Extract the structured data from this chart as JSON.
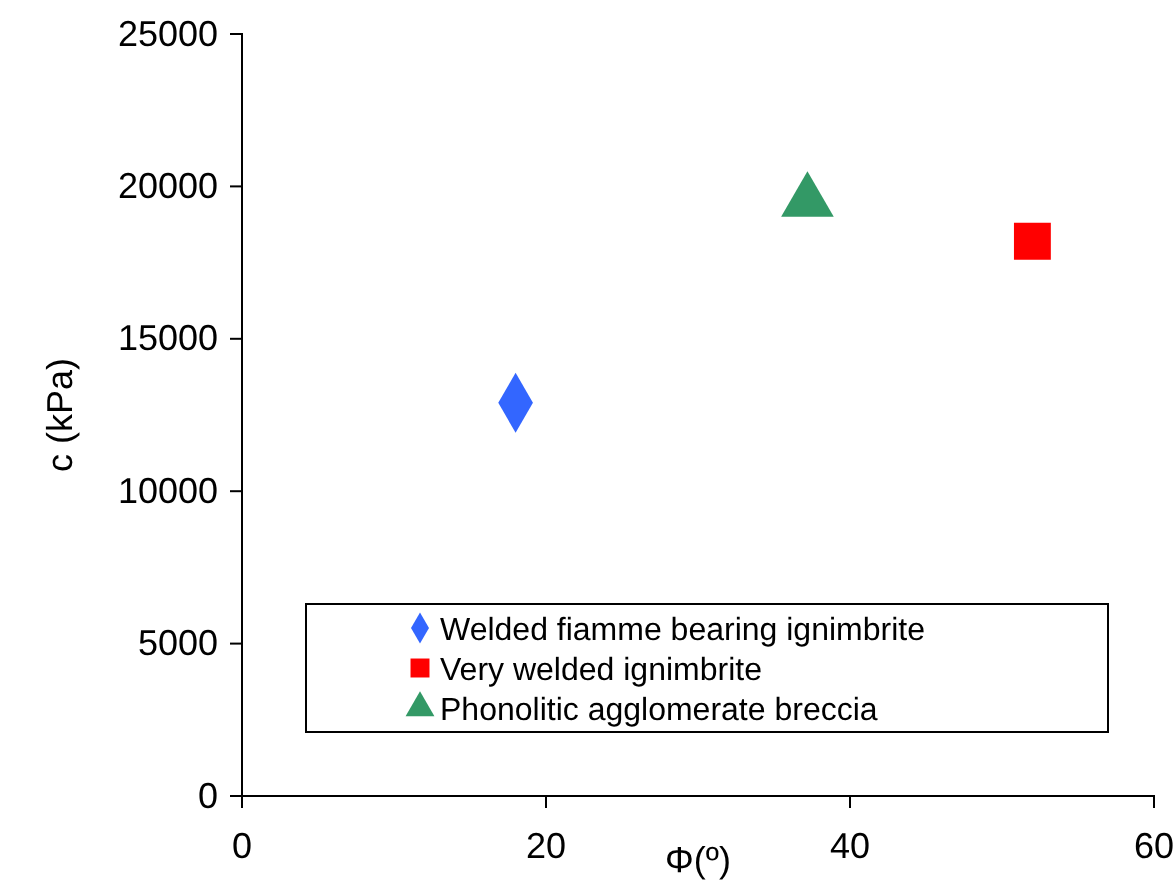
{
  "chart_data": {
    "type": "scatter",
    "xlabel": "Φ(º)",
    "ylabel": "c (kPa)",
    "xlim": [
      0,
      60
    ],
    "xticks": [
      0,
      20,
      40,
      60
    ],
    "ylim": [
      0,
      25000
    ],
    "yticks": [
      0,
      5000,
      10000,
      15000,
      20000,
      25000
    ],
    "grid": false,
    "legend": "bottom right",
    "series": [
      {
        "name": "Welded fiamme bearing ignimbrite",
        "color": "#3366ff",
        "marker": "diamond",
        "x": [
          18.0
        ],
        "values": [
          12900
        ]
      },
      {
        "name": "Very welded ignimbrite",
        "color": "#ff0000",
        "marker": "square",
        "x": [
          52.0
        ],
        "values": [
          18200
        ]
      },
      {
        "name": "Phonolitic agglomerate breccia",
        "color": "#339966",
        "marker": "triangle",
        "x": [
          37.2
        ],
        "values": [
          19500
        ]
      }
    ]
  }
}
